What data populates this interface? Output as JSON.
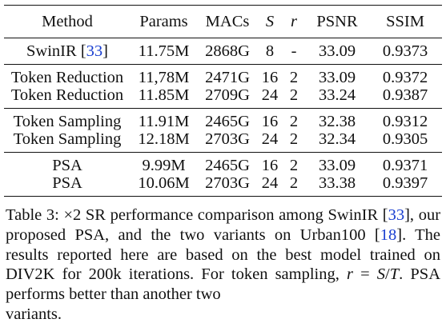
{
  "table": {
    "headers": {
      "method": "Method",
      "params": "Params",
      "macs": "MACs",
      "s": "S",
      "r": "r",
      "psnr": "PSNR",
      "ssim": "SSIM"
    },
    "groups": [
      {
        "rows": [
          {
            "method": "SwinIR",
            "cite": "33",
            "params": "11.75M",
            "macs": "2868G",
            "s": "8",
            "r": "-",
            "psnr": "33.09",
            "ssim": "0.9373"
          }
        ]
      },
      {
        "rows": [
          {
            "method": "Token Reduction",
            "params": "11,78M",
            "macs": "2471G",
            "s": "16",
            "r": "2",
            "psnr": "33.09",
            "ssim": "0.9372"
          },
          {
            "method": "Token Reduction",
            "params": "11.85M",
            "macs": "2709G",
            "s": "24",
            "r": "2",
            "psnr": "33.24",
            "ssim": "0.9387"
          }
        ]
      },
      {
        "rows": [
          {
            "method": "Token Sampling",
            "params": "11.91M",
            "macs": "2465G",
            "s": "16",
            "r": "2",
            "psnr": "32.38",
            "ssim": "0.9312"
          },
          {
            "method": "Token Sampling",
            "params": "12.18M",
            "macs": "2703G",
            "s": "24",
            "r": "2",
            "psnr": "32.34",
            "ssim": "0.9305"
          }
        ]
      },
      {
        "rows": [
          {
            "method": "PSA",
            "params": "9.99M",
            "macs": "2465G",
            "s": "16",
            "r": "2",
            "psnr": "33.09",
            "ssim": "0.9371"
          },
          {
            "method": "PSA",
            "params": "10.06M",
            "macs": "2703G",
            "s": "24",
            "r": "2",
            "psnr": "33.38",
            "ssim": "0.9397"
          }
        ]
      }
    ]
  },
  "caption": {
    "label": "Table 3:",
    "t1": "×2 SR performance comparison among SwinIR [",
    "cite1": "33",
    "t2": "], our proposed PSA, and the two variants on Urban100 [",
    "cite2": "18",
    "t3": "]. The results reported here are based on the best model trained on DIV2K for 200k iterations. For token sampling, ",
    "eq_r": "r",
    "eq_mid1": " = ",
    "eq_s": "S",
    "eq_slash": "/",
    "eq_t": "T",
    "t4": ". PSA performs better than another two",
    "t5": "variants."
  },
  "colors": {
    "text": "#111111",
    "cite": "#1a3fd0"
  }
}
